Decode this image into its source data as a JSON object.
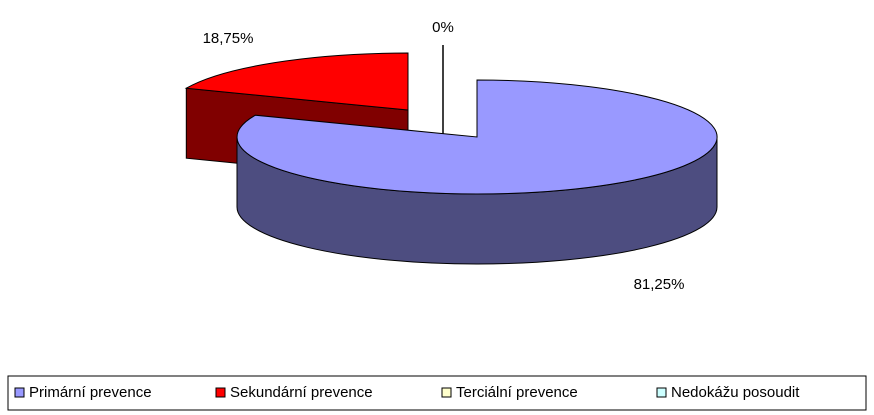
{
  "chart_data": {
    "type": "pie",
    "three_d": true,
    "categories": [
      "Primární prevence",
      "Sekundární prevence",
      "Terciální prevence",
      "Nedokážu posoudit"
    ],
    "values": [
      81.25,
      18.75,
      0,
      0
    ],
    "value_labels": [
      "81,25%",
      "18,75%",
      "0%",
      null
    ],
    "colors": [
      "#9999ff",
      "#ff0000",
      "#ffffcc",
      "#ccffff"
    ],
    "legend": "bottom"
  }
}
